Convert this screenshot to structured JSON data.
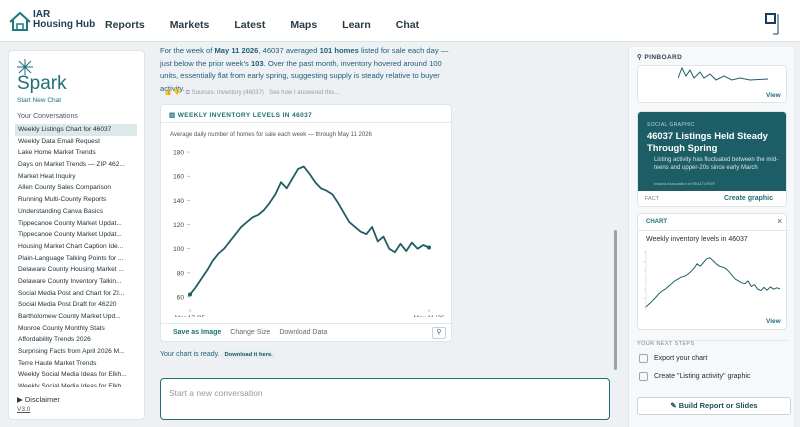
{
  "nav": {
    "logo": [
      "IAR",
      "Housing Hub"
    ],
    "links": [
      "Reports",
      "Markets",
      "Latest",
      "Maps",
      "Learn",
      "Chat"
    ]
  },
  "sidebar": {
    "brand": "Spark",
    "new_chat": "Start New Chat",
    "heading": "Your Conversations",
    "conversations": [
      "Weekly Listings Chart for 46037",
      "Weekly Data Email Request",
      "Lake Home Market Trends",
      "Days on Market Trends — ZIP 462...",
      "Market Heat Inquiry",
      "Allen County Sales Comparison",
      "Running Multi-County Reports",
      "Understanding Canva Basics",
      "Tippecanoe County Market Updat...",
      "Tippecanoe County Market Updat...",
      "Housing Market Chart Caption Ide...",
      "Plain-Language Talking Points for ...",
      "Delaware County Housing Market ...",
      "Delaware County Inventory Talkin...",
      "Social Media Post and Chart for ZI...",
      "Social Media Post Draft for 46220",
      "Bartholomew County Market Upd...",
      "Monroe County Monthly Stats",
      "Affordability Trends 2026",
      "Surprising Facts from April 2026 M...",
      "Terre Haute Market Trends",
      "Weekly Social Media Ideas for Elkh...",
      "Weekly Social Media Ideas for Elkh..."
    ],
    "disclaimer": "Disclaimer",
    "version": "V3.0"
  },
  "message": {
    "parts": [
      "For the week of ",
      "May 11 2026",
      ", 46037 averaged ",
      "101 homes",
      " listed for sale each day — just below the prior week's ",
      "103",
      ". Over the past month, inventory hovered around 100 units, essentially flat from early spring, suggesting supply is steady relative to buyer activity."
    ],
    "sources": "Sources: Inventory (46037)",
    "explain": "See how I answered this...",
    "ready": "Your chart is ready.",
    "download": "Download it here."
  },
  "chart_card": {
    "title": "WEEKLY INVENTORY LEVELS IN 46037",
    "actions": [
      "Save as Image",
      "Change Size",
      "Download Data"
    ]
  },
  "chart_data": {
    "type": "line",
    "subtitle": "Average daily number of homes for sale each week — through May 11 2026",
    "categories": [
      "Mar 17 '25",
      null,
      null,
      null,
      null,
      null,
      null,
      null,
      null,
      null,
      null,
      null,
      null,
      null,
      null,
      null,
      null,
      null,
      null,
      null,
      null,
      null,
      null,
      null,
      null,
      null,
      null,
      null,
      null,
      null,
      null,
      null,
      null,
      null,
      null,
      null,
      null,
      null,
      null,
      null,
      null,
      null,
      "May 11 '26"
    ],
    "series": [
      {
        "name": "Inventory",
        "color": "#1e5f66",
        "values": [
          62,
          68,
          75,
          82,
          90,
          96,
          100,
          106,
          112,
          118,
          122,
          126,
          128,
          132,
          138,
          145,
          155,
          150,
          158,
          166,
          168,
          162,
          155,
          150,
          148,
          145,
          138,
          130,
          122,
          118,
          114,
          112,
          118,
          106,
          110,
          100,
          97,
          104,
          98,
          105,
          100,
          103,
          101
        ]
      }
    ],
    "ylim": [
      55,
      185
    ],
    "yticks": [
      60,
      80,
      100,
      120,
      140,
      160,
      180
    ],
    "grid": false
  },
  "composer": {
    "placeholder": "Start a new conversation"
  },
  "pinboard": {
    "title": "PINBOARD",
    "view": "View",
    "social": {
      "kind": "SOCIAL GRAPHIC",
      "headline": "46037 Listings Held Steady Through Spring",
      "body": "Listing activity has fluctuated between the mid-teens and upper-20s since early March",
      "credit": "Indiana Association of REALTORS®",
      "fact": "FACT",
      "create": "Create graphic"
    },
    "chart": {
      "kind": "CHART",
      "close": "×",
      "title": "Weekly inventory levels in 46037",
      "view": "View"
    },
    "steps_title": "YOUR NEXT STEPS",
    "steps": [
      "Export your chart",
      "Create \"Listing activity\" graphic"
    ],
    "button": "Build Report or Slides"
  }
}
